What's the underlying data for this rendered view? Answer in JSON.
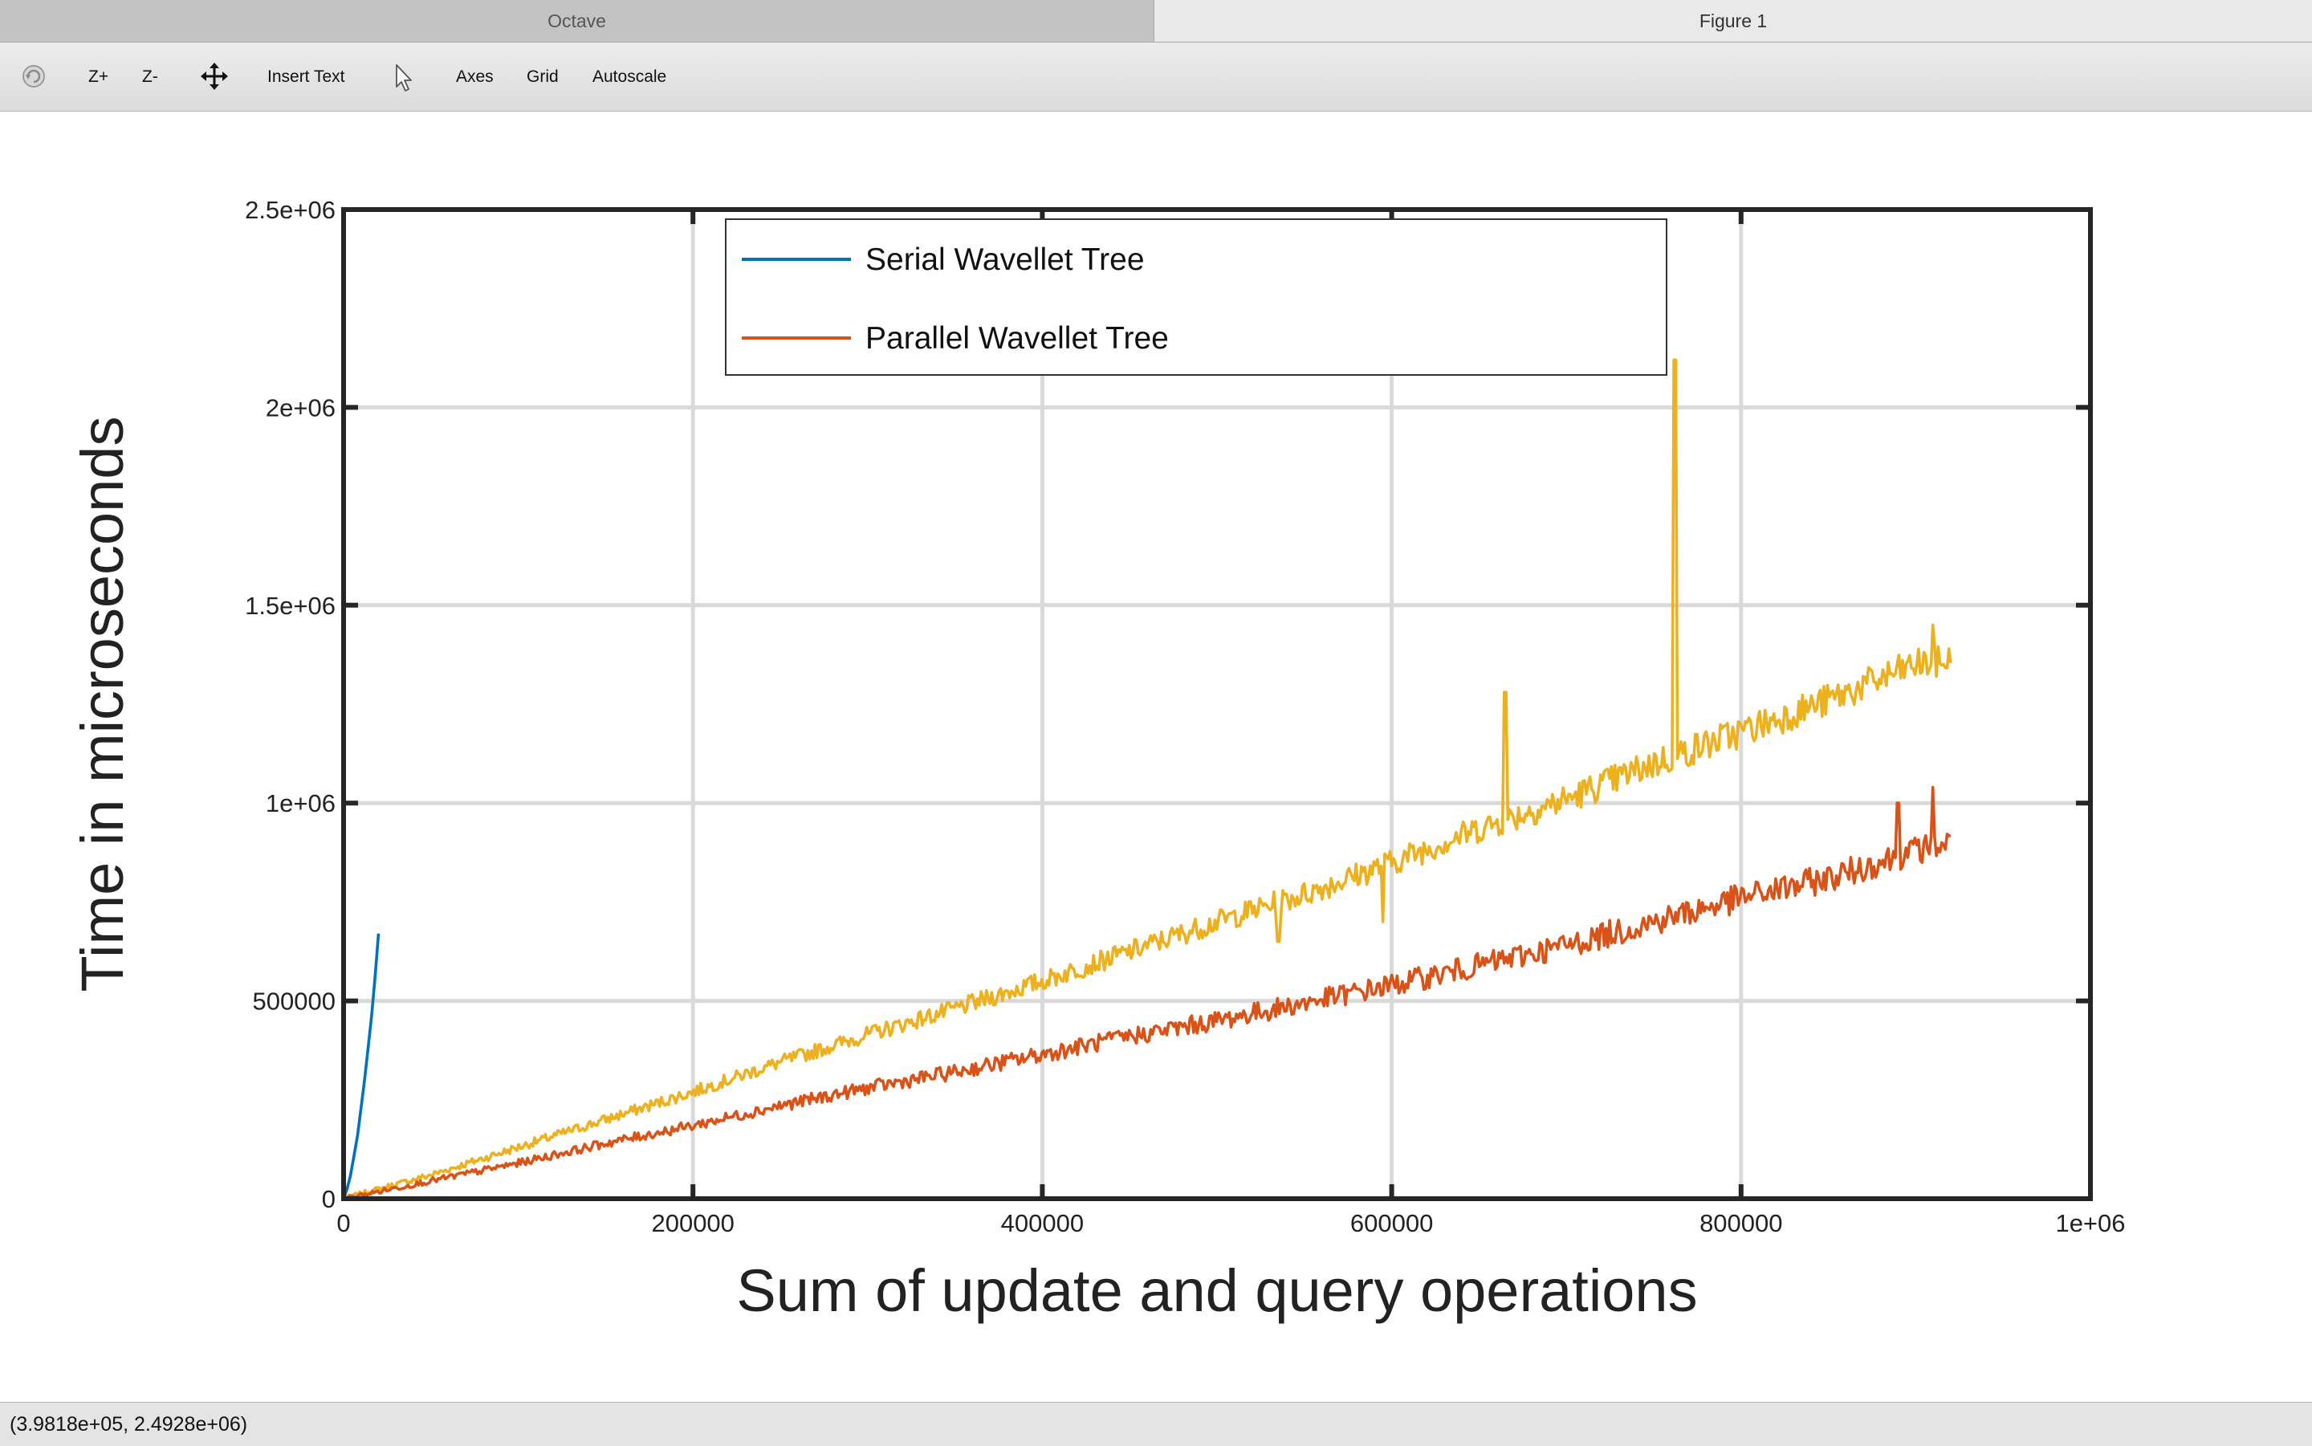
{
  "tabs": [
    {
      "label": "Octave",
      "active": false
    },
    {
      "label": "Figure 1",
      "active": true
    }
  ],
  "toolbar": {
    "rotate_icon": "rotate-icon",
    "zoom_in_label": "Z+",
    "zoom_out_label": "Z-",
    "pan_icon": "pan-arrows-icon",
    "insert_text_label": "Insert Text",
    "select_icon": "mouse-pointer-icon",
    "axes_label": "Axes",
    "grid_label": "Grid",
    "autoscale_label": "Autoscale"
  },
  "status": {
    "coordinates": "(3.9818e+05, 2.4928e+06)"
  },
  "colors": {
    "serial": "#0072bd",
    "parallel": "#d95319",
    "third": "#edb120",
    "grid": "#d9d9d9",
    "axis": "#262626"
  },
  "chart_data": {
    "type": "line",
    "title": "",
    "xlabel": "Sum of update and query operations",
    "ylabel": "Time in microseconds",
    "xlim": [
      0,
      1000000
    ],
    "ylim": [
      0,
      2500000
    ],
    "xticks": [
      0,
      200000,
      400000,
      600000,
      800000,
      1000000
    ],
    "xtick_labels": [
      "0",
      "200000",
      "400000",
      "600000",
      "800000",
      "1e+06"
    ],
    "yticks": [
      0,
      500000,
      1000000,
      1500000,
      2000000,
      2500000
    ],
    "ytick_labels": [
      "0",
      "500000",
      "1e+06",
      "1.5e+06",
      "2e+06",
      "2.5e+06"
    ],
    "grid": true,
    "legend_position": "top-center",
    "series": [
      {
        "name": "Serial Wavellet Tree",
        "color_key": "serial",
        "in_legend": true,
        "x": [
          0,
          2000,
          4000,
          6000,
          8000,
          10000,
          12000,
          14000,
          16000,
          18000,
          20000
        ],
        "y": [
          0,
          25000,
          60000,
          110000,
          160000,
          230000,
          300000,
          380000,
          460000,
          560000,
          670000
        ]
      },
      {
        "name": "Parallel Wavellet Tree",
        "color_key": "parallel",
        "in_legend": true,
        "x": [
          0,
          50000,
          100000,
          150000,
          200000,
          250000,
          300000,
          350000,
          400000,
          450000,
          500000,
          550000,
          600000,
          650000,
          700000,
          750000,
          800000,
          850000,
          900000,
          920000
        ],
        "y": [
          0,
          45000,
          90000,
          140000,
          185000,
          235000,
          280000,
          320000,
          365000,
          410000,
          450000,
          495000,
          540000,
          590000,
          640000,
          700000,
          760000,
          810000,
          880000,
          900000
        ],
        "noise_amplitude": 60000,
        "spikes": [
          [
            910000,
            1040000
          ],
          [
            890000,
            1000000
          ]
        ]
      },
      {
        "name": "",
        "color_key": "third",
        "in_legend": false,
        "x": [
          0,
          50000,
          100000,
          150000,
          200000,
          250000,
          300000,
          350000,
          400000,
          450000,
          500000,
          550000,
          600000,
          650000,
          700000,
          750000,
          800000,
          850000,
          900000,
          920000
        ],
        "y": [
          0,
          60000,
          130000,
          200000,
          270000,
          345000,
          415000,
          480000,
          550000,
          625000,
          700000,
          770000,
          850000,
          935000,
          1010000,
          1100000,
          1180000,
          1260000,
          1350000,
          1360000
        ],
        "noise_amplitude": 70000,
        "spikes": [
          [
            762000,
            2120000
          ],
          [
            665000,
            1280000
          ],
          [
            535000,
            650000
          ],
          [
            595000,
            700000
          ],
          [
            910000,
            1450000
          ]
        ]
      }
    ]
  }
}
